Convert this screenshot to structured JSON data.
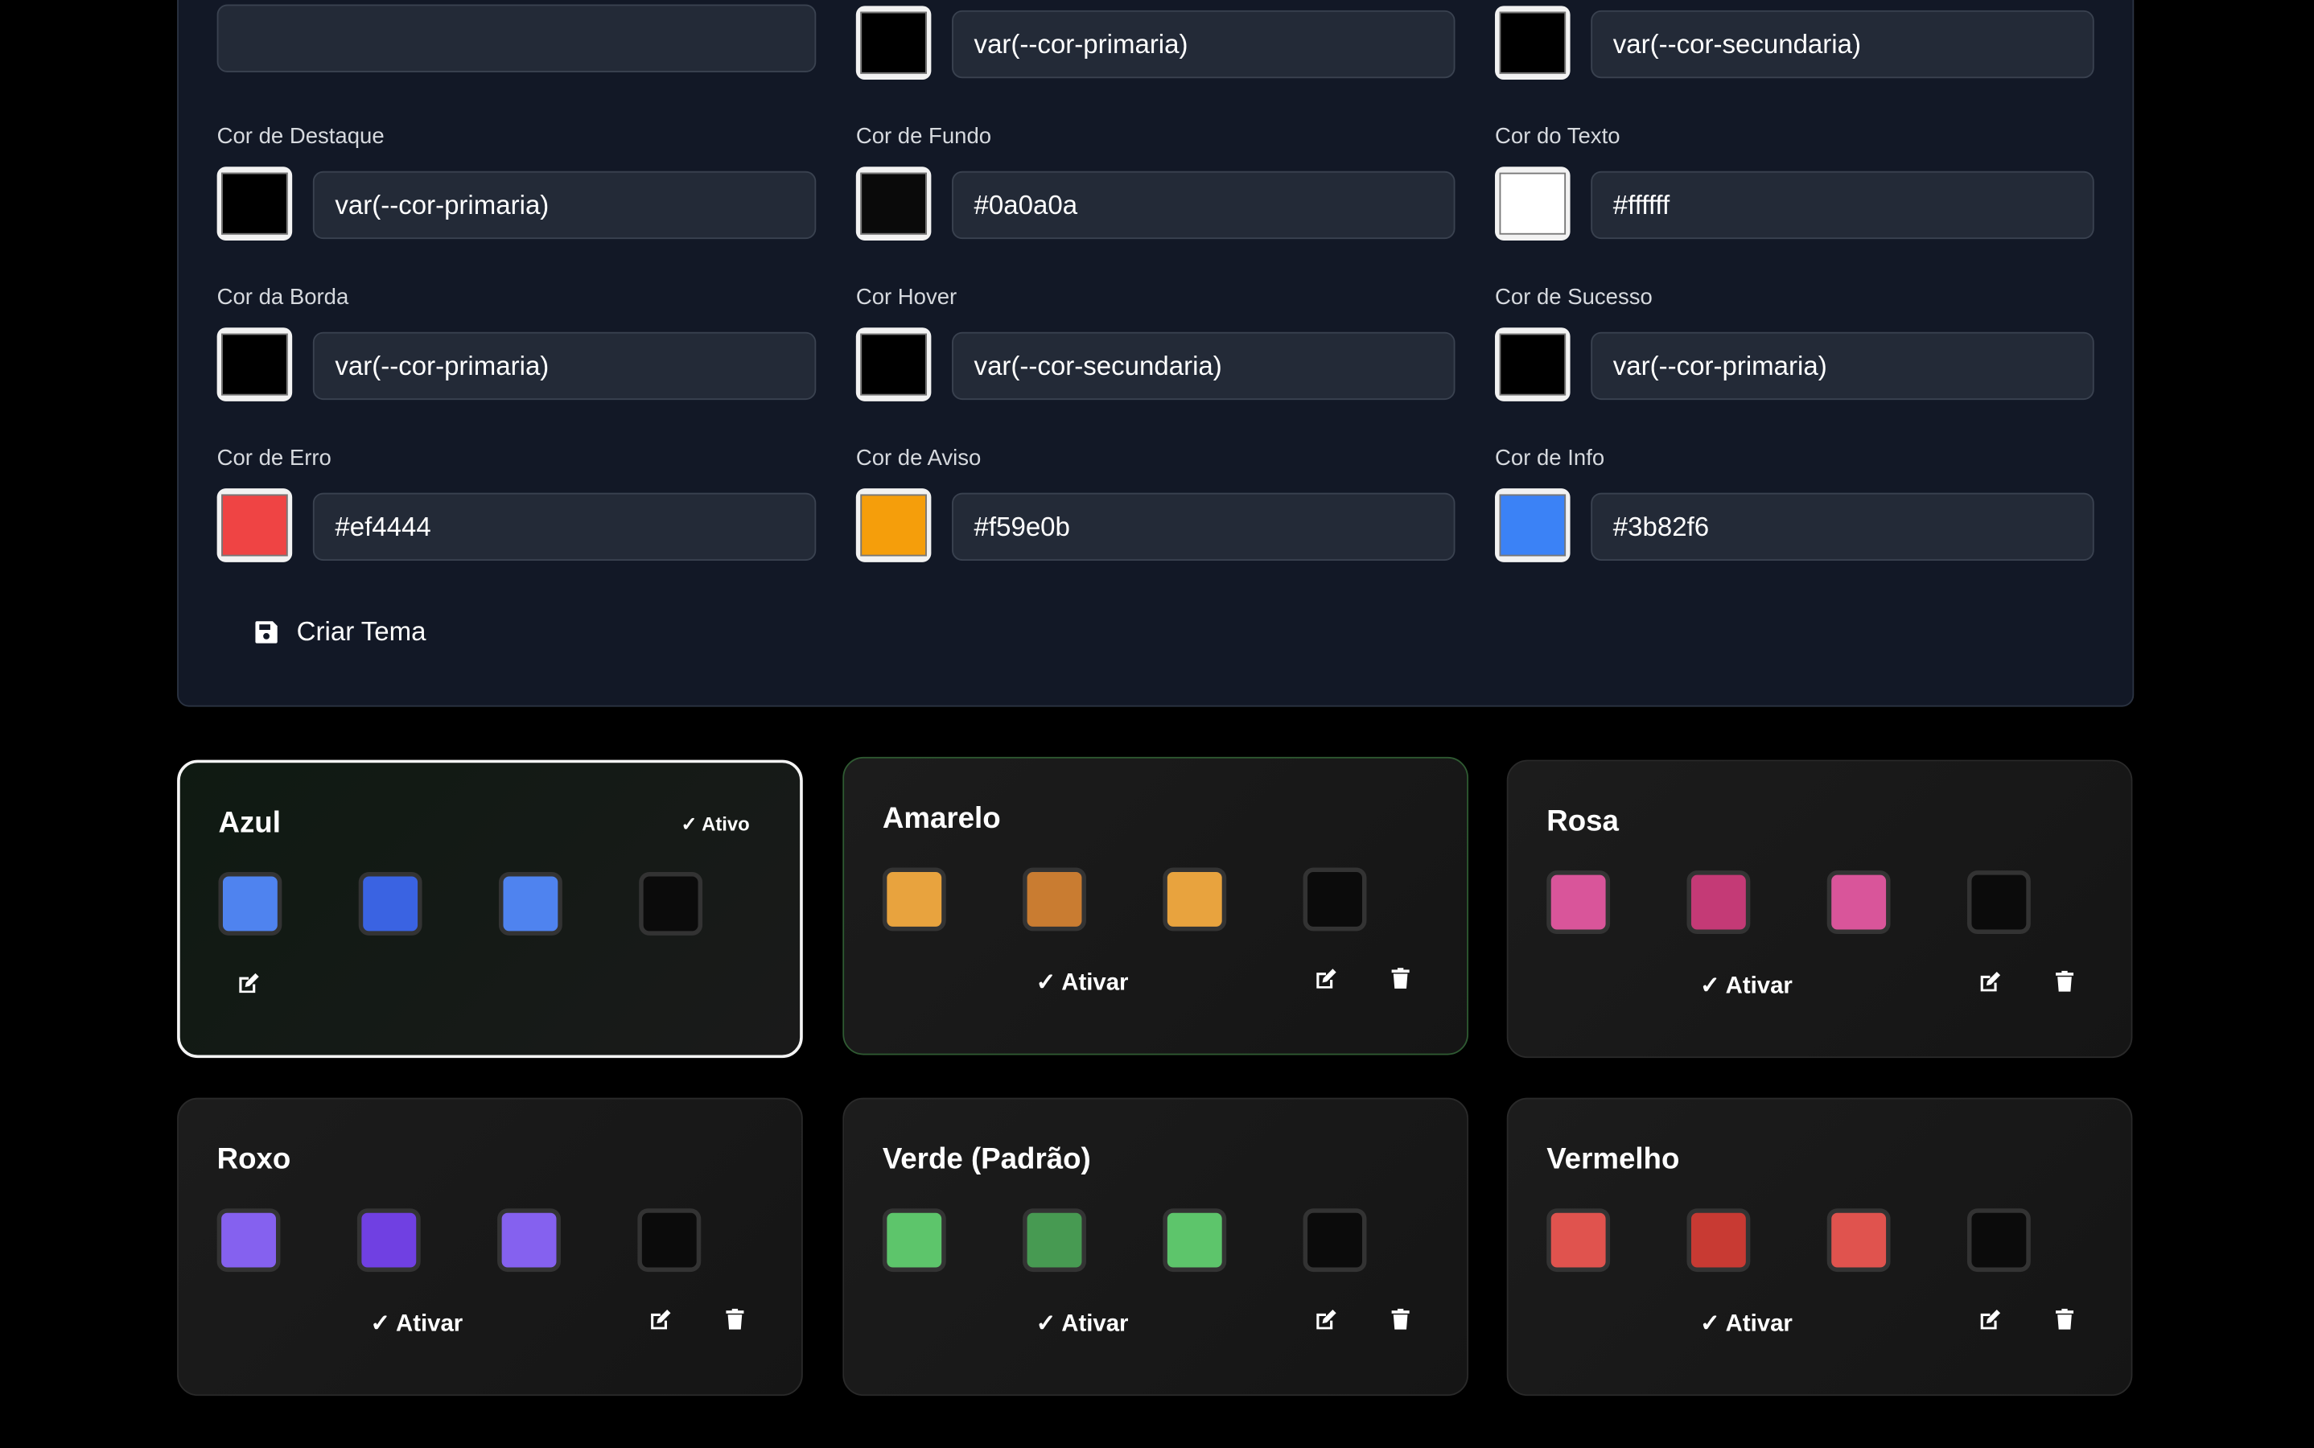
{
  "form": {
    "top_row": [
      {
        "value": ""
      },
      {
        "swatch": "#000000",
        "value": "var(--cor-primaria)"
      },
      {
        "swatch": "#000000",
        "value": "var(--cor-secundaria)"
      }
    ],
    "fields": [
      {
        "label": "Cor de Destaque",
        "swatch": "#000000",
        "value": "var(--cor-primaria)"
      },
      {
        "label": "Cor de Fundo",
        "swatch": "#0a0a0a",
        "value": "#0a0a0a"
      },
      {
        "label": "Cor do Texto",
        "swatch": "#ffffff",
        "value": "#ffffff"
      },
      {
        "label": "Cor da Borda",
        "swatch": "#000000",
        "value": "var(--cor-primaria)"
      },
      {
        "label": "Cor Hover",
        "swatch": "#000000",
        "value": "var(--cor-secundaria)"
      },
      {
        "label": "Cor de Sucesso",
        "swatch": "#000000",
        "value": "var(--cor-primaria)"
      },
      {
        "label": "Cor de Erro",
        "swatch": "#ef4444",
        "value": "#ef4444"
      },
      {
        "label": "Cor de Aviso",
        "swatch": "#f59e0b",
        "value": "#f59e0b"
      },
      {
        "label": "Cor de Info",
        "swatch": "#3b82f6",
        "value": "#3b82f6"
      }
    ],
    "create_label": "Criar Tema"
  },
  "themes": [
    {
      "name": "Azul",
      "active": true,
      "status": "✓ Ativo",
      "colors": [
        "#4f83ef",
        "#3a63e2",
        "#4f83ef",
        "#0b0b0b"
      ]
    },
    {
      "name": "Amarelo",
      "hover": true,
      "action": "✓ Ativar",
      "colors": [
        "#e8a33e",
        "#c97c31",
        "#e8a33e",
        "#0b0b0b"
      ]
    },
    {
      "name": "Rosa",
      "action": "✓ Ativar",
      "colors": [
        "#d9559a",
        "#c43a76",
        "#d9559a",
        "#0b0b0b"
      ]
    },
    {
      "name": "Roxo",
      "action": "✓ Ativar",
      "colors": [
        "#8561ef",
        "#7040e2",
        "#8561ef",
        "#0b0b0b"
      ]
    },
    {
      "name": "Verde (Padrão)",
      "action": "✓ Ativar",
      "colors": [
        "#5dc56b",
        "#479a52",
        "#5dc56b",
        "#0b0b0b"
      ]
    },
    {
      "name": "Vermelho",
      "action": "✓ Ativar",
      "colors": [
        "#e0534e",
        "#c83a33",
        "#e0534e",
        "#0b0b0b"
      ]
    }
  ]
}
